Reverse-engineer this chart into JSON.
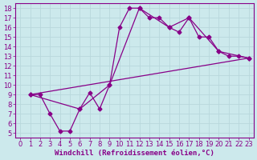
{
  "bg_color": "#cce9ec",
  "line_color": "#880088",
  "grid_color": "#b8d8dc",
  "xlabel": "Windchill (Refroidissement éolien,°C)",
  "xlim": [
    -0.5,
    23.5
  ],
  "ylim": [
    4.5,
    18.5
  ],
  "xticks": [
    0,
    1,
    2,
    3,
    4,
    5,
    6,
    7,
    8,
    9,
    10,
    11,
    12,
    13,
    14,
    15,
    16,
    17,
    18,
    19,
    20,
    21,
    22,
    23
  ],
  "yticks": [
    5,
    6,
    7,
    8,
    9,
    10,
    11,
    12,
    13,
    14,
    15,
    16,
    17,
    18
  ],
  "line1_x": [
    1,
    2,
    3,
    4,
    5,
    6,
    7,
    8,
    9,
    10,
    11,
    12,
    13,
    14,
    15,
    16,
    17,
    18,
    19,
    20,
    21,
    22,
    23
  ],
  "line1_y": [
    9,
    9,
    7,
    5.2,
    5.2,
    7.5,
    9.2,
    7.5,
    10,
    16,
    18,
    18,
    17,
    17,
    16,
    15.5,
    17,
    15,
    15,
    13.5,
    13,
    13,
    12.8
  ],
  "line3_x": [
    1,
    23
  ],
  "line3_y": [
    9,
    12.8
  ],
  "line4_x": [
    1,
    6,
    9,
    12,
    15,
    17,
    20,
    23
  ],
  "line4_y": [
    9,
    7.5,
    10,
    18,
    16,
    17,
    13.5,
    12.8
  ],
  "marker": "D",
  "markersize": 2.5,
  "xlabel_fontsize": 6.5,
  "tick_fontsize": 6
}
